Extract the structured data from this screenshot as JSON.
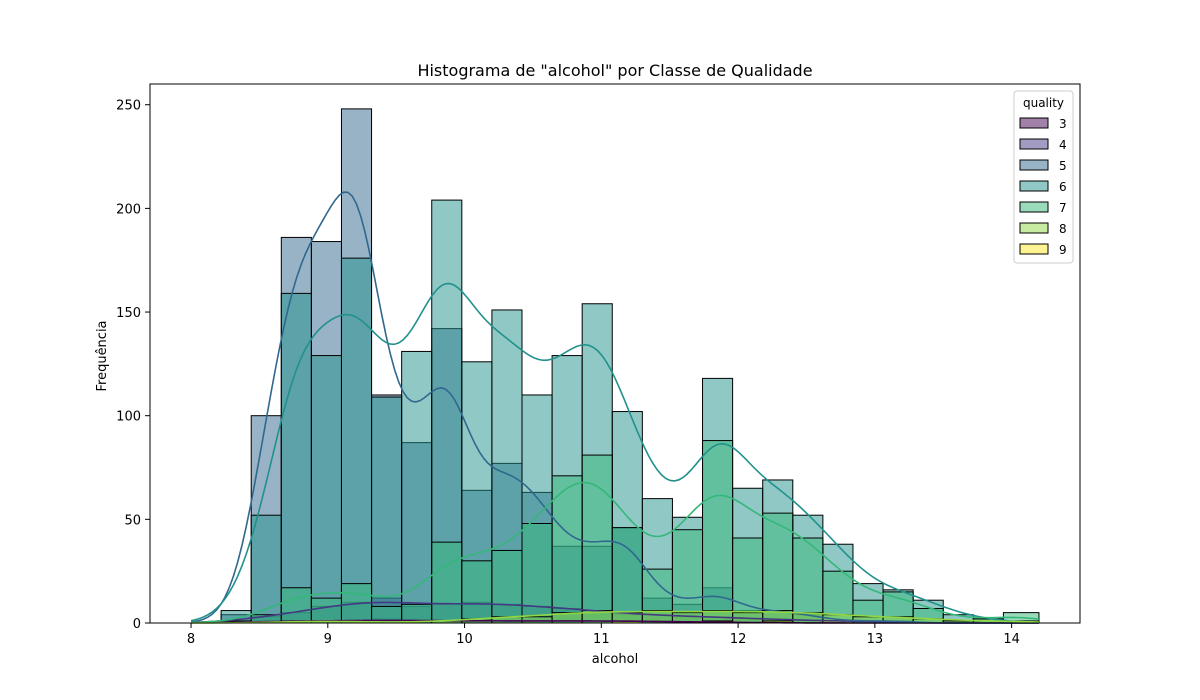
{
  "chart_data": {
    "type": "histogram",
    "title": "Histograma de \"alcohol\" por Classe de Qualidade",
    "xlabel": "alcohol",
    "ylabel": "Frequência",
    "xlim": [
      7.7,
      14.5
    ],
    "ylim": [
      0,
      260
    ],
    "xticks": [
      8,
      9,
      10,
      11,
      12,
      13,
      14
    ],
    "yticks": [
      0,
      50,
      100,
      150,
      200,
      250
    ],
    "grid": false,
    "legend": {
      "title": "quality",
      "placement": "top-right"
    },
    "bin_edges": [
      8.0,
      8.22,
      8.44,
      8.66,
      8.88,
      9.1,
      9.32,
      9.54,
      9.76,
      9.98,
      10.2,
      10.42,
      10.64,
      10.86,
      11.08,
      11.3,
      11.52,
      11.74,
      11.96,
      12.18,
      12.4,
      12.62,
      12.84,
      13.06,
      13.28,
      13.5,
      13.72,
      13.94,
      14.2
    ],
    "series": [
      {
        "name": "3",
        "color": "#440154",
        "kde": true,
        "values": [
          0,
          0,
          1,
          1,
          1,
          1,
          2,
          1,
          1,
          1,
          1,
          1,
          1,
          1,
          1,
          1,
          0,
          1,
          0,
          0,
          0,
          0,
          0,
          0,
          0,
          0,
          0,
          0
        ]
      },
      {
        "name": "4",
        "color": "#443983",
        "kde": true,
        "values": [
          0,
          1,
          3,
          5,
          8,
          10,
          12,
          8,
          9,
          10,
          9,
          8,
          7,
          6,
          4,
          4,
          3,
          3,
          2,
          2,
          1,
          1,
          1,
          0,
          0,
          0,
          0,
          0
        ]
      },
      {
        "name": "5",
        "color": "#31688e",
        "kde": true,
        "values": [
          0,
          4,
          100,
          186,
          184,
          248,
          110,
          87,
          142,
          64,
          77,
          63,
          37,
          37,
          46,
          12,
          9,
          17,
          6,
          6,
          4,
          1,
          1,
          1,
          0,
          0,
          0,
          0
        ]
      },
      {
        "name": "6",
        "color": "#21918c",
        "kde": true,
        "values": [
          0,
          6,
          52,
          159,
          129,
          176,
          109,
          131,
          204,
          126,
          151,
          110,
          129,
          154,
          102,
          60,
          51,
          118,
          65,
          69,
          52,
          38,
          19,
          16,
          11,
          4,
          2,
          0
        ]
      },
      {
        "name": "7",
        "color": "#35b779",
        "kde": true,
        "values": [
          0,
          1,
          4,
          17,
          12,
          19,
          8,
          9,
          39,
          30,
          35,
          48,
          71,
          81,
          46,
          26,
          45,
          88,
          41,
          53,
          41,
          25,
          11,
          15,
          7,
          1,
          2,
          5
        ]
      },
      {
        "name": "8",
        "color": "#90d743",
        "kde": true,
        "values": [
          0,
          0,
          0,
          1,
          1,
          1,
          0,
          0,
          1,
          2,
          3,
          3,
          5,
          6,
          5,
          6,
          5,
          6,
          5,
          6,
          5,
          4,
          3,
          3,
          2,
          1,
          1,
          1
        ]
      },
      {
        "name": "9",
        "color": "#fde725",
        "kde": false,
        "values": [
          0,
          0,
          0,
          0,
          0,
          0,
          0,
          0,
          0,
          0,
          0,
          0,
          0,
          0,
          1,
          0,
          0,
          1,
          0,
          1,
          0,
          1,
          0,
          0,
          0,
          0,
          0,
          0
        ]
      }
    ]
  }
}
